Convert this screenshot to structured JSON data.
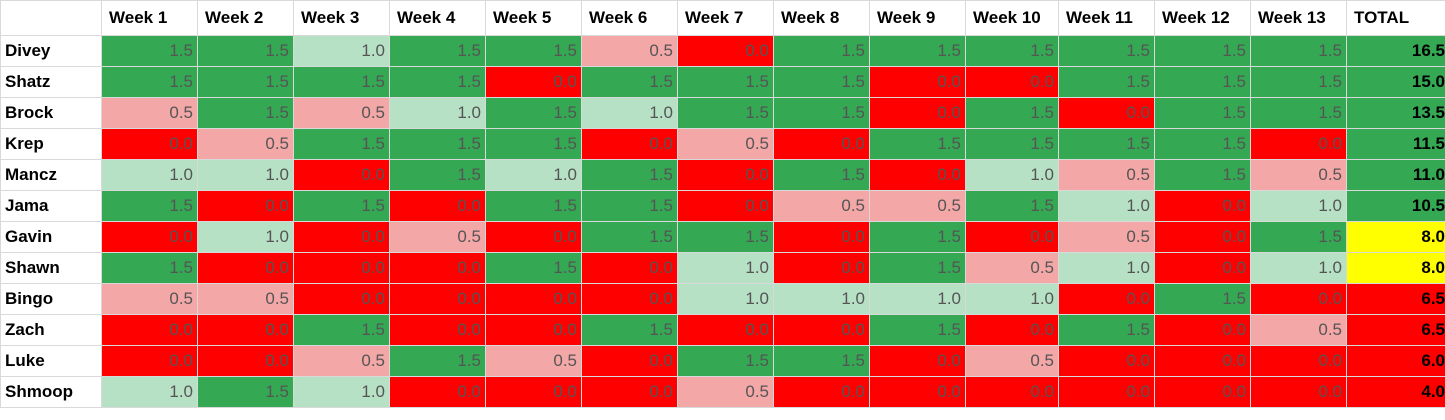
{
  "columns": {
    "corner": "",
    "weeks": [
      "Week 1",
      "Week 2",
      "Week 3",
      "Week 4",
      "Week 5",
      "Week 6",
      "Week 7",
      "Week 8",
      "Week 9",
      "Week 10",
      "Week 11",
      "Week 12",
      "Week 13"
    ],
    "total": "TOTAL"
  },
  "colors": {
    "1.5": "#34a853",
    "1.0": "#b7e1c5",
    "0.5": "#f4a7a7",
    "0.0": "#ff0000",
    "total_green": "#34a853",
    "total_yellow": "#ffff00",
    "total_red": "#ff0000"
  },
  "rows": [
    {
      "name": "Divey",
      "scores": [
        "1.5",
        "1.5",
        "1.0",
        "1.5",
        "1.5",
        "0.5",
        "0.0",
        "1.5",
        "1.5",
        "1.5",
        "1.5",
        "1.5",
        "1.5"
      ],
      "total": "16.5",
      "total_color": "total_green"
    },
    {
      "name": "Shatz",
      "scores": [
        "1.5",
        "1.5",
        "1.5",
        "1.5",
        "0.0",
        "1.5",
        "1.5",
        "1.5",
        "0.0",
        "0.0",
        "1.5",
        "1.5",
        "1.5"
      ],
      "total": "15.0",
      "total_color": "total_green"
    },
    {
      "name": "Brock",
      "scores": [
        "0.5",
        "1.5",
        "0.5",
        "1.0",
        "1.5",
        "1.0",
        "1.5",
        "1.5",
        "0.0",
        "1.5",
        "0.0",
        "1.5",
        "1.5"
      ],
      "total": "13.5",
      "total_color": "total_green"
    },
    {
      "name": "Krep",
      "scores": [
        "0.0",
        "0.5",
        "1.5",
        "1.5",
        "1.5",
        "0.0",
        "0.5",
        "0.0",
        "1.5",
        "1.5",
        "1.5",
        "1.5",
        "0.0"
      ],
      "total": "11.5",
      "total_color": "total_green"
    },
    {
      "name": "Mancz",
      "scores": [
        "1.0",
        "1.0",
        "0.0",
        "1.5",
        "1.0",
        "1.5",
        "0.0",
        "1.5",
        "0.0",
        "1.0",
        "0.5",
        "1.5",
        "0.5"
      ],
      "total": "11.0",
      "total_color": "total_green"
    },
    {
      "name": "Jama",
      "scores": [
        "1.5",
        "0.0",
        "1.5",
        "0.0",
        "1.5",
        "1.5",
        "0.0",
        "0.5",
        "0.5",
        "1.5",
        "1.0",
        "0.0",
        "1.0"
      ],
      "total": "10.5",
      "total_color": "total_green"
    },
    {
      "name": "Gavin",
      "scores": [
        "0.0",
        "1.0",
        "0.0",
        "0.5",
        "0.0",
        "1.5",
        "1.5",
        "0.0",
        "1.5",
        "0.0",
        "0.5",
        "0.0",
        "1.5"
      ],
      "total": "8.0",
      "total_color": "total_yellow"
    },
    {
      "name": "Shawn",
      "scores": [
        "1.5",
        "0.0",
        "0.0",
        "0.0",
        "1.5",
        "0.0",
        "1.0",
        "0.0",
        "1.5",
        "0.5",
        "1.0",
        "0.0",
        "1.0"
      ],
      "total": "8.0",
      "total_color": "total_yellow"
    },
    {
      "name": "Bingo",
      "scores": [
        "0.5",
        "0.5",
        "0.0",
        "0.0",
        "0.0",
        "0.0",
        "1.0",
        "1.0",
        "1.0",
        "1.0",
        "0.0",
        "1.5",
        "0.0"
      ],
      "total": "6.5",
      "total_color": "total_red"
    },
    {
      "name": "Zach",
      "scores": [
        "0.0",
        "0.0",
        "1.5",
        "0.0",
        "0.0",
        "1.5",
        "0.0",
        "0.0",
        "1.5",
        "0.0",
        "1.5",
        "0.0",
        "0.5"
      ],
      "total": "6.5",
      "total_color": "total_red"
    },
    {
      "name": "Luke",
      "scores": [
        "0.0",
        "0.0",
        "0.5",
        "1.5",
        "0.5",
        "0.0",
        "1.5",
        "1.5",
        "0.0",
        "0.5",
        "0.0",
        "0.0",
        "0.0"
      ],
      "total": "6.0",
      "total_color": "total_red"
    },
    {
      "name": "Shmoop",
      "scores": [
        "1.0",
        "1.5",
        "1.0",
        "0.0",
        "0.0",
        "0.0",
        "0.5",
        "0.0",
        "0.0",
        "0.0",
        "0.0",
        "0.0",
        "0.0"
      ],
      "total": "4.0",
      "total_color": "total_red"
    }
  ]
}
